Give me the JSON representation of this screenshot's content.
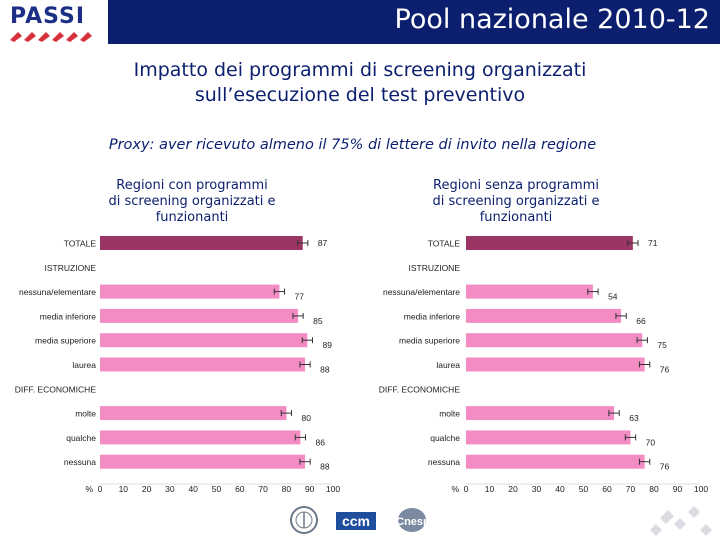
{
  "header": {
    "title": "Pool nazionale 2010-12",
    "logo_text": "PASSI"
  },
  "subtitle_line1": "Impatto dei programmi di screening organizzati",
  "subtitle_line2": "sull’esecuzione del test preventivo",
  "proxy_note": "Proxy: aver ricevuto almeno il 75% di lettere di invito nella regione",
  "footer": {
    "logo_ccm": "ccm",
    "logo_cnesps": "Cnesps"
  },
  "colors": {
    "title_bg": "#0b1f6e",
    "total_bar": "#9b3566",
    "category_bar": "#f48cc4",
    "text": "#0b1f6e"
  },
  "chart_data": [
    {
      "type": "bar",
      "orientation": "horizontal",
      "title": "Regioni con programmi di screening organizzati e funzionanti",
      "title_lines": [
        "Regioni con programmi",
        "di screening organizzati e",
        "funzionanti"
      ],
      "x_unit_label": "%",
      "xlim": [
        0,
        100
      ],
      "x_ticks": [
        0,
        10,
        20,
        30,
        40,
        50,
        60,
        70,
        80,
        90,
        100
      ],
      "rows": [
        {
          "label": "TOTALE",
          "value": 87,
          "kind": "total",
          "value_label": "87"
        },
        {
          "label": "ISTRUZIONE",
          "kind": "header"
        },
        {
          "label": "nessuna/elementare",
          "value": 77,
          "kind": "bar",
          "value_label": "77"
        },
        {
          "label": "media inferiore",
          "value": 85,
          "kind": "bar",
          "value_label": "85"
        },
        {
          "label": "media superiore",
          "value": 89,
          "kind": "bar",
          "value_label": "89"
        },
        {
          "label": "laurea",
          "value": 88,
          "kind": "bar",
          "value_label": "88"
        },
        {
          "label": "DIFF. ECONOMICHE",
          "kind": "header"
        },
        {
          "label": "molte",
          "value": 80,
          "kind": "bar",
          "value_label": "80"
        },
        {
          "label": "qualche",
          "value": 86,
          "kind": "bar",
          "value_label": "86"
        },
        {
          "label": "nessuna",
          "value": 88,
          "kind": "bar",
          "value_label": "88"
        }
      ]
    },
    {
      "type": "bar",
      "orientation": "horizontal",
      "title": "Regioni senza programmi di screening organizzati e funzionanti",
      "title_lines": [
        "Regioni senza programmi",
        "di screening organizzati e",
        "funzionanti"
      ],
      "x_unit_label": "%",
      "xlim": [
        0,
        100
      ],
      "x_ticks": [
        0,
        10,
        20,
        30,
        40,
        50,
        60,
        70,
        80,
        90,
        100
      ],
      "rows": [
        {
          "label": "TOTALE",
          "value": 71,
          "kind": "total",
          "value_label": "71"
        },
        {
          "label": "ISTRUZIONE",
          "kind": "header"
        },
        {
          "label": "nessuna/elementare",
          "value": 54,
          "kind": "bar",
          "value_label": "54"
        },
        {
          "label": "media inferiore",
          "value": 66,
          "kind": "bar",
          "value_label": "66"
        },
        {
          "label": "media superiore",
          "value": 75,
          "kind": "bar",
          "value_label": "75"
        },
        {
          "label": "laurea",
          "value": 76,
          "kind": "bar",
          "value_label": "76"
        },
        {
          "label": "DIFF. ECONOMICHE",
          "kind": "header"
        },
        {
          "label": "molte",
          "value": 63,
          "kind": "bar",
          "value_label": "63"
        },
        {
          "label": "qualche",
          "value": 70,
          "kind": "bar",
          "value_label": "70"
        },
        {
          "label": "nessuna",
          "value": 76,
          "kind": "bar",
          "value_label": "76"
        }
      ]
    }
  ]
}
